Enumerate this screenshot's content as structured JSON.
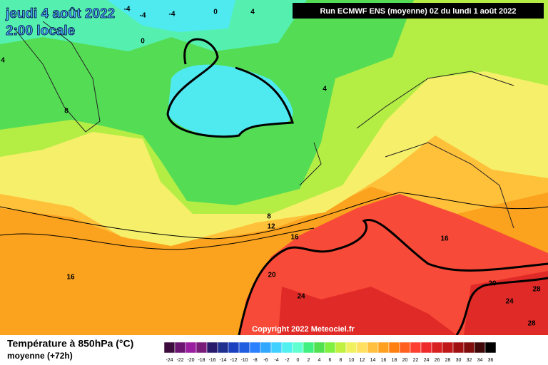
{
  "header": {
    "date": "jeudi 4 août 2022",
    "time": "2:00 locale",
    "run": "Run ECMWF ENS (moyenne) 0Z du lundi 1 août 2022"
  },
  "map": {
    "copyright": "Copyright 2022 Meteociel.fr",
    "contour_labels": [
      "-4",
      "-4",
      "-4",
      "0",
      "4",
      "0",
      "4",
      "8",
      "4",
      "8",
      "12",
      "16",
      "16",
      "20",
      "24",
      "16",
      "20",
      "28",
      "24",
      "28"
    ]
  },
  "legend": {
    "title": "Température à 850hPa (°C)",
    "subtitle": "moyenne  (+72h)",
    "ticks": [
      -24,
      -22,
      -20,
      -18,
      -16,
      -14,
      -12,
      -10,
      -8,
      -6,
      -4,
      -2,
      0,
      2,
      4,
      6,
      8,
      10,
      12,
      14,
      16,
      18,
      20,
      22,
      24,
      26,
      28,
      30,
      32,
      34,
      36
    ],
    "colors": [
      "#3c0d3c",
      "#6b1470",
      "#9a1fa0",
      "#7a1d7a",
      "#2a1a6b",
      "#20308f",
      "#1a40c0",
      "#1f5ce0",
      "#2a80ff",
      "#30a8ff",
      "#40d0ff",
      "#50f0f0",
      "#60ffd0",
      "#40f080",
      "#50e050",
      "#80f040",
      "#c0f040",
      "#f0f060",
      "#ffe060",
      "#ffc040",
      "#ffa020",
      "#ff8010",
      "#ff6020",
      "#ff4030",
      "#ee2a2a",
      "#d82020",
      "#c01818",
      "#a01010",
      "#800c0c",
      "#400808",
      "#000000"
    ]
  }
}
